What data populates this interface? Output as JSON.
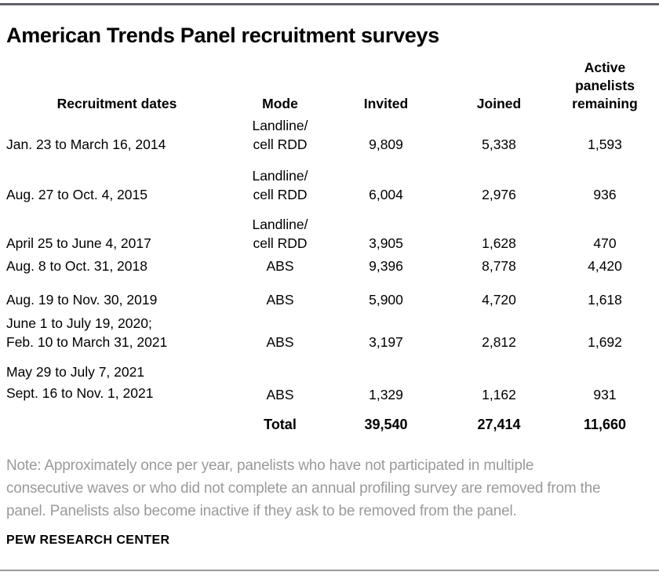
{
  "title": "American Trends Panel recruitment surveys",
  "table": {
    "headers": [
      "Recruitment dates",
      "Mode",
      "Invited",
      "Joined",
      "Active\npanelists\nremaining"
    ],
    "rows": [
      {
        "dates": "Jan. 23 to March 16, 2014",
        "mode": "Landline/\ncell RDD",
        "invited": "9,809",
        "joined": "5,338",
        "active": "1,593"
      },
      {
        "dates": "Aug. 27 to Oct. 4, 2015",
        "mode": "Landline/\ncell RDD",
        "invited": "6,004",
        "joined": "2,976",
        "active": "936"
      },
      {
        "dates": "April 25 to June 4, 2017",
        "mode": "Landline/\ncell RDD",
        "invited": "3,905",
        "joined": "1,628",
        "active": "470"
      },
      {
        "dates": "Aug. 8 to Oct. 31, 2018",
        "mode": "ABS",
        "invited": "9,396",
        "joined": "8,778",
        "active": "4,420"
      },
      {
        "dates": "Aug. 19 to Nov. 30, 2019",
        "mode": "ABS",
        "invited": "5,900",
        "joined": "4,720",
        "active": "1,618"
      },
      {
        "dates": "June 1 to July 19, 2020;\nFeb. 10 to March 31, 2021",
        "mode": "ABS",
        "invited": "3,197",
        "joined": "2,812",
        "active": "1,692"
      },
      {
        "dates": "May 29 to July 7, 2021\nSept. 16 to Nov. 1, 2021",
        "mode": "ABS",
        "invited": "1,329",
        "joined": "1,162",
        "active": "931"
      }
    ],
    "total": {
      "dates": "",
      "mode": "Total",
      "invited": "39,540",
      "joined": "27,414",
      "active": "11,660"
    }
  },
  "note": "Note: Approximately once per year, panelists who have not participated in multiple\nconsecutive waves or who did not complete an annual profiling survey are removed from the\npanel. Panelists also become inactive if they ask to be removed from the panel.",
  "footer": "PEW RESEARCH CENTER",
  "colors": {
    "text": "#000000",
    "note_gray": "#9a9a9a",
    "rule_top": "#53565c",
    "rule_bottom": "#9a9a9a"
  },
  "chart_data": {
    "type": "table",
    "title": "American Trends Panel recruitment surveys",
    "columns": [
      "Recruitment dates",
      "Mode",
      "Invited",
      "Joined",
      "Active panelists remaining"
    ],
    "rows": [
      [
        "Jan. 23 to March 16, 2014",
        "Landline/cell RDD",
        9809,
        5338,
        1593
      ],
      [
        "Aug. 27 to Oct. 4, 2015",
        "Landline/cell RDD",
        6004,
        2976,
        936
      ],
      [
        "April 25 to June 4, 2017",
        "Landline/cell RDD",
        3905,
        1628,
        470
      ],
      [
        "Aug. 8 to Oct. 31, 2018",
        "ABS",
        9396,
        8778,
        4420
      ],
      [
        "Aug. 19 to Nov. 30, 2019",
        "ABS",
        5900,
        4720,
        1618
      ],
      [
        "June 1 to July 19, 2020; Feb. 10 to March 31, 2021",
        "ABS",
        3197,
        2812,
        1692
      ],
      [
        "May 29 to July 7, 2021; Sept. 16 to Nov. 1, 2021",
        "ABS",
        1329,
        1162,
        931
      ]
    ],
    "totals_row": [
      "",
      "Total",
      39540,
      27414,
      11660
    ],
    "legend_position": "none",
    "grid": false
  }
}
